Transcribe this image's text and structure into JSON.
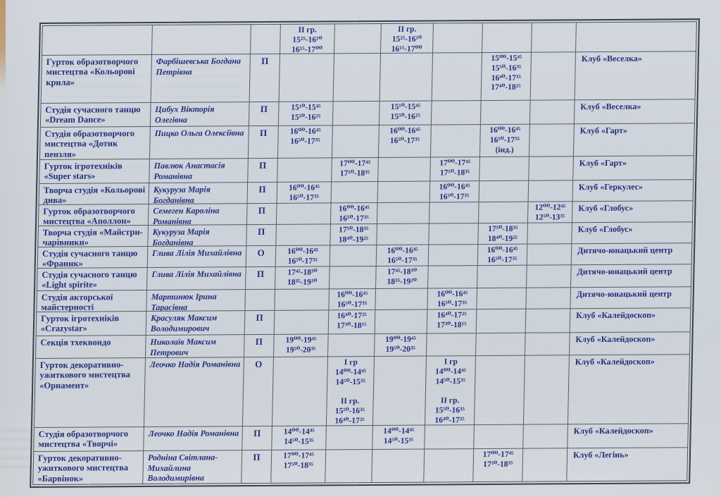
{
  "palette": {
    "paper": "#cfd5dc",
    "ink": "#22307a",
    "grid_line": "#565c63",
    "outer_line": "#39404a",
    "desk_edge": "#c4a37c"
  },
  "schedule_table": {
    "rows": [
      {
        "name": "",
        "teacher": "",
        "type": "",
        "times": [
          "ІІ гр.\n15²⁵-16¹⁰\n16¹⁵-17⁰⁰",
          "",
          "ІІ гр.\n15²⁵-16¹⁰\n16¹⁵-17⁰⁰",
          "",
          "",
          ""
        ],
        "location": ""
      },
      {
        "name": "Гурток образотворчого мистецтва «Кольорові крила»",
        "teacher": "Фарбішевська Богдана Петрівна",
        "type": "П",
        "times": [
          "",
          "",
          "",
          "",
          "15⁰⁰-15⁴⁵\n15⁵⁰-16³⁵\n16⁴⁰-17³⁵\n17⁴⁰-18²⁵",
          ""
        ],
        "location": "Клуб «Веселка»"
      },
      {
        "name": "Студія сучасного танцю «Dream Dance»",
        "teacher": "Цибух Вікторія Олегівна",
        "type": "П",
        "times": [
          "15¹⁰-15⁴⁵\n15⁵⁰-16²⁵",
          "",
          "15¹⁰-15⁴⁵\n15⁵⁰-16²⁵",
          "",
          "",
          ""
        ],
        "location": "Клуб «Веселка»"
      },
      {
        "name": "Студія образотворчого мистецтва «Дотик пензля»",
        "teacher": "Пицко Ольга Олексіївна",
        "type": "П",
        "times": [
          "16⁰⁰-16⁴⁵\n16⁵⁰-17³⁵",
          "",
          "16⁰⁰-16⁴⁵\n16⁵⁰-17³⁵",
          "",
          "16⁰⁰-16⁴⁵\n16⁵⁰-17³⁵\n(інд.)",
          ""
        ],
        "location": "Клуб «Гарт»"
      },
      {
        "name": "Гурток ігротехніків «Super stars»",
        "teacher": "Павлюк Анастасія Романівна",
        "type": "П",
        "times": [
          "",
          "17⁰⁰-17⁴⁵\n17⁵⁰-18³⁵",
          "",
          "17⁰⁰-17⁴⁵\n17⁵⁰-18³⁵",
          "",
          ""
        ],
        "location": "Клуб «Гарт»"
      },
      {
        "name": "Творча студія «Кольорові дива»",
        "teacher": "Кукуруза Марія Богданівна",
        "type": "П",
        "times": [
          "16⁰⁰-16⁴⁵\n16⁵⁰-17³⁵",
          "",
          "",
          "16⁰⁰-16⁴⁵\n16⁵⁰-17³⁵",
          "",
          ""
        ],
        "location": "Клуб «Геркулес»"
      },
      {
        "name": "Гурток образотворчого мистецтва «Аполлон»",
        "teacher": "Семеген Кароліна Романівна",
        "type": "П",
        "times": [
          "",
          "16⁰⁰-16⁴⁵\n16⁵⁰-17³⁵",
          "",
          "",
          "",
          "12⁰⁰-12⁴⁵\n12⁵⁰-13³⁵"
        ],
        "location": "Клуб «Глобус»"
      },
      {
        "name": "Творча студія «Майстри-чарівники»",
        "teacher": "Кукуруза Марія Богданівна",
        "type": "П",
        "times": [
          "",
          "17⁵⁰-18³⁵\n18⁴⁰-19²⁵",
          "",
          "",
          "17⁵⁰-18³⁵\n18⁴⁰-19²⁵",
          ""
        ],
        "location": "Клуб «Глобус»"
      },
      {
        "name": "Студія сучасного танцю «Франик»",
        "teacher": "Глива Лілія Михайлівна",
        "type": "О",
        "times": [
          "16⁰⁰-16⁴⁵\n16⁵⁰-17³⁵",
          "",
          "16⁰⁰-16⁴⁵\n16⁵⁰-17³⁵",
          "",
          "16⁰⁰-16⁴⁵\n16⁵⁰-17³⁵",
          ""
        ],
        "location": "Дитячо-юнацький центр"
      },
      {
        "name": "Студія сучасного танцю «Light spirite»",
        "teacher": "Глива Лілія Михайлівна",
        "type": "П",
        "times": [
          "17⁴⁵-18³⁰\n18³⁵-19²⁰",
          "",
          "17⁴⁵-18³⁰\n18³⁵-19²⁰",
          "",
          "",
          ""
        ],
        "location": "Дитячо-юнацький центр"
      },
      {
        "name": "Студія акторської майстерності",
        "teacher": "Мартинюк Ірина Тарасівна",
        "type": "",
        "times": [
          "",
          "16⁰⁰-16⁴⁵\n16⁵⁰-17³⁵",
          "",
          "16⁰⁰-16⁴⁵\n16⁵⁰-17³⁵",
          "",
          ""
        ],
        "location": "Дитячо-юнацький центр"
      },
      {
        "name": "Гурток ігротехніків «Crazystar»",
        "teacher": "Красуляк Максим Володимирович",
        "type": "П",
        "times": [
          "",
          "16⁴⁰-17²⁵\n17³⁰-18¹⁵",
          "",
          "16⁴⁰-17²⁵\n17³⁰-18¹⁵",
          "",
          ""
        ],
        "location": "Клуб «Калейдоскоп»"
      },
      {
        "name": "Секція тхеквондо",
        "teacher": "Николаїв Максим Петрович",
        "type": "П",
        "times": [
          "19⁰⁰-19⁴⁵\n19⁵⁰-20³⁵",
          "",
          "19⁰⁰-19⁴⁵\n19⁵⁰-20³⁵",
          "",
          "",
          ""
        ],
        "location": "Клуб «Калейдоскоп»"
      },
      {
        "name": "Гурток декоративно-ужиткового мистецтва «Орнамент»",
        "teacher": "Леочко Надія Романівна",
        "type": "О",
        "times": [
          "",
          "І гр\n14⁰⁰-14⁴⁵\n14⁵⁰-15³⁵\n\nІІ гр.\n15⁵⁰-16³⁵\n16⁴⁰-17²⁵",
          "",
          "І гр\n14⁰⁰-14⁴⁵\n14⁵⁰-15³⁵\n\nІІ гр.\n15⁵⁰-16³⁵\n16⁴⁰-17²⁵",
          "",
          ""
        ],
        "location": "Клуб «Калейдоскоп»"
      },
      {
        "name": "Студія образотворчого мистецтва «Творчі»",
        "teacher": "Леочко Надія Романівна",
        "type": "П",
        "times": [
          "14⁰⁰-14⁴⁵\n14⁵⁰-15³⁵",
          "",
          "14⁰⁰-14⁴⁵\n14⁵⁰-15³⁵",
          "",
          "",
          ""
        ],
        "location": "Клуб «Калейдоскоп»"
      },
      {
        "name": "Гурток декоративно-ужиткового мистецтва «Барвінок»",
        "teacher": "Родніна Світлана-Михайлина Володимирівна",
        "type": "П",
        "times": [
          "17⁰⁰-17⁴⁵\n17⁵⁰-18³⁵",
          "",
          "",
          "",
          "17⁰⁰-17⁴⁵\n17⁵⁰-18³⁵",
          ""
        ],
        "location": "Клуб «Легінь»"
      }
    ]
  }
}
